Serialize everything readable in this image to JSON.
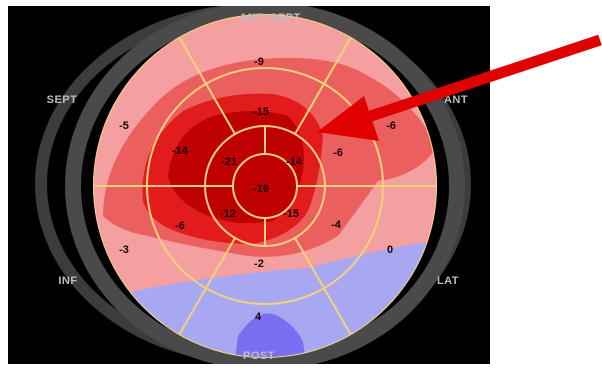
{
  "orientation_labels": {
    "anterior_septum": "ANT_SEPT",
    "septum": "SEPT",
    "anterior": "ANT",
    "inferior": "INF",
    "lateral": "LAT",
    "posterior": "POST"
  },
  "segments": {
    "basal": [
      "-9",
      "-6",
      "0",
      "4",
      "-3",
      "-5"
    ],
    "mid": [
      "-15",
      "-6",
      "-4",
      "-2",
      "-6",
      "-14"
    ],
    "apical": [
      "-21",
      "-14",
      "-15",
      "-12"
    ],
    "apex": "-19"
  },
  "colors": {
    "background": "#000000",
    "outer_ring": "#4a4a4a",
    "grid_lines": "#f2d27a",
    "light_red": "#f5a0a0",
    "medium_red": "#ec5f5f",
    "bright_red": "#e21c1c",
    "dark_red": "#bf0000",
    "light_blue": "#a8a8f2",
    "medium_blue": "#7a6ef2",
    "arrow": "#e00000"
  },
  "arrow": {
    "points_to": "ANT"
  }
}
